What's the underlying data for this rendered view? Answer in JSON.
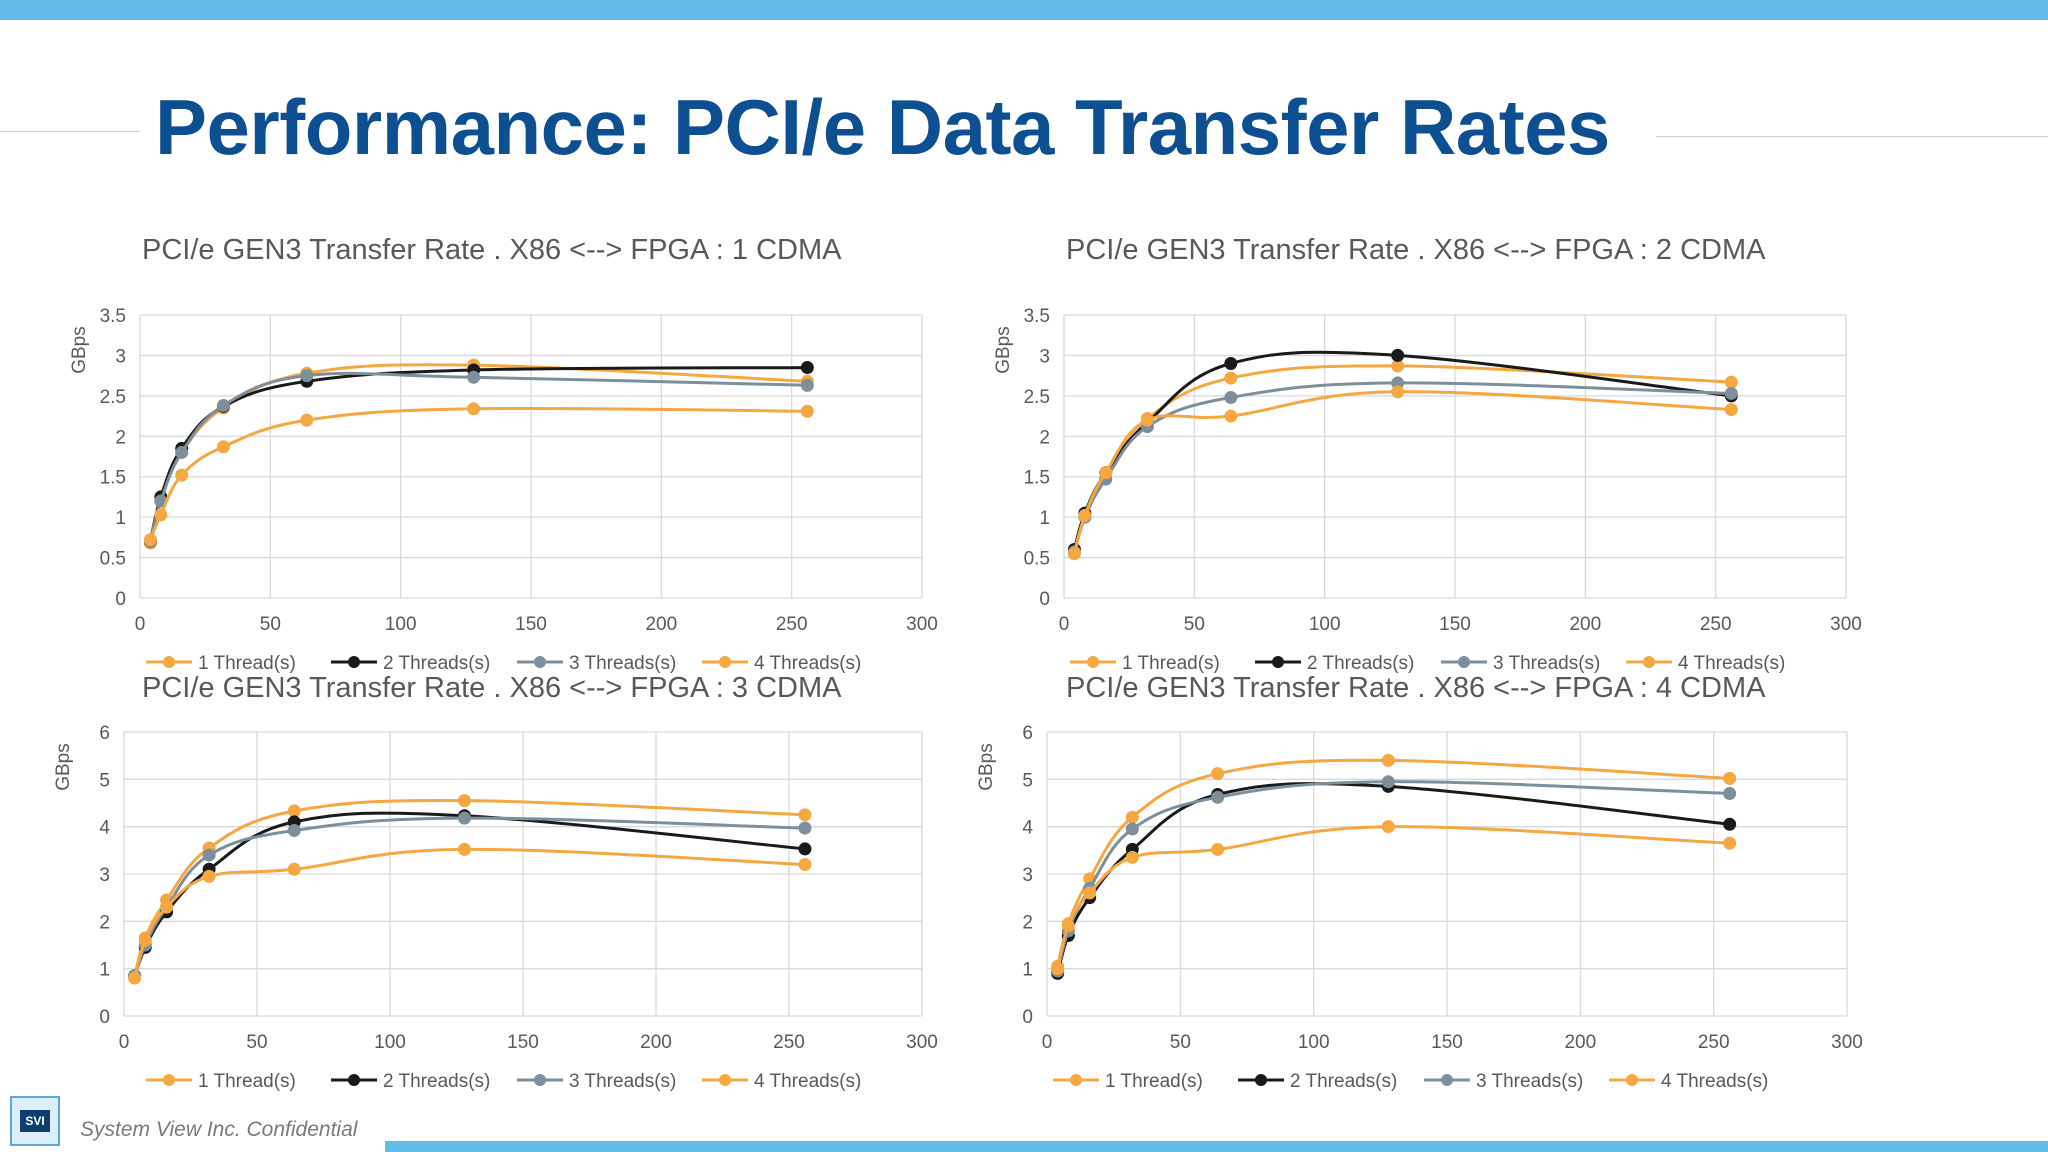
{
  "slide_title": "Performance: PCI/e Data Transfer Rates",
  "footer_text": "System View Inc. Confidential",
  "logo_text": "SVI",
  "colors": {
    "title": "#0d4f91",
    "bar": "#63bde8",
    "thread1": "#f5a742",
    "thread2": "#1a1a1a",
    "thread3": "#7d8f9b",
    "thread4": "#f5a742"
  },
  "chart_data": [
    {
      "type": "line",
      "title": "PCI/e GEN3 Transfer Rate . X86 <--> FPGA : 1 CDMA",
      "ylabel": "GBps",
      "xlim": [
        0,
        300
      ],
      "ylim": [
        0,
        3.5
      ],
      "xticks": [
        "0",
        "50",
        "100",
        "150",
        "200",
        "250",
        "300"
      ],
      "yticks": [
        "0",
        "0.5",
        "1",
        "1.5",
        "2",
        "2.5",
        "3",
        "3.5"
      ],
      "grid": true,
      "legend": "bottom",
      "x": [
        4,
        8,
        16,
        32,
        64,
        128,
        256
      ],
      "series": [
        {
          "name": "1  Thread(s)",
          "color": "#f5a742",
          "values": [
            0.68,
            1.22,
            1.8,
            2.35,
            2.78,
            2.88,
            2.68
          ]
        },
        {
          "name": "2 Threads(s)",
          "color": "#1a1a1a",
          "values": [
            0.7,
            1.25,
            1.85,
            2.37,
            2.68,
            2.82,
            2.85
          ]
        },
        {
          "name": "3 Threads(s)",
          "color": "#7d8f9b",
          "values": [
            0.7,
            1.2,
            1.8,
            2.38,
            2.75,
            2.73,
            2.63
          ]
        },
        {
          "name": "4 Threads(s)",
          "color": "#f5a742",
          "values": [
            0.72,
            1.03,
            1.52,
            1.87,
            2.2,
            2.34,
            2.31
          ]
        }
      ]
    },
    {
      "type": "line",
      "title": "PCI/e GEN3 Transfer Rate . X86 <--> FPGA : 2 CDMA",
      "ylabel": "GBps",
      "xlim": [
        0,
        300
      ],
      "ylim": [
        0,
        3.5
      ],
      "xticks": [
        "0",
        "50",
        "100",
        "150",
        "200",
        "250",
        "300"
      ],
      "yticks": [
        "0",
        "0.5",
        "1",
        "1.5",
        "2",
        "2.5",
        "3",
        "3.5"
      ],
      "grid": true,
      "legend": "bottom",
      "x": [
        4,
        8,
        16,
        32,
        64,
        128,
        256
      ],
      "series": [
        {
          "name": "1  Thread(s)",
          "color": "#f5a742",
          "values": [
            0.55,
            1.0,
            1.55,
            2.22,
            2.72,
            2.87,
            2.67
          ]
        },
        {
          "name": "2 Threads(s)",
          "color": "#1a1a1a",
          "values": [
            0.6,
            1.05,
            1.55,
            2.17,
            2.9,
            3.0,
            2.5
          ]
        },
        {
          "name": "3 Threads(s)",
          "color": "#7d8f9b",
          "values": [
            0.57,
            1.0,
            1.47,
            2.12,
            2.48,
            2.66,
            2.53
          ]
        },
        {
          "name": "4 Threads(s)",
          "color": "#f5a742",
          "values": [
            0.55,
            1.02,
            1.55,
            2.2,
            2.25,
            2.55,
            2.33
          ]
        }
      ]
    },
    {
      "type": "line",
      "title": "PCI/e GEN3 Transfer Rate . X86 <--> FPGA : 3 CDMA",
      "ylabel": "GBps",
      "xlim": [
        0,
        300
      ],
      "ylim": [
        0,
        6
      ],
      "xticks": [
        "0",
        "50",
        "100",
        "150",
        "200",
        "250",
        "300"
      ],
      "yticks": [
        "0",
        "1",
        "2",
        "3",
        "4",
        "5",
        "6"
      ],
      "grid": true,
      "legend": "bottom",
      "x": [
        4,
        8,
        16,
        32,
        64,
        128,
        256
      ],
      "series": [
        {
          "name": "1  Thread(s)",
          "color": "#f5a742",
          "values": [
            0.85,
            1.65,
            2.45,
            3.55,
            4.33,
            4.55,
            4.25
          ]
        },
        {
          "name": "2 Threads(s)",
          "color": "#1a1a1a",
          "values": [
            0.85,
            1.45,
            2.2,
            3.1,
            4.1,
            4.23,
            3.53
          ]
        },
        {
          "name": "3 Threads(s)",
          "color": "#7d8f9b",
          "values": [
            0.85,
            1.5,
            2.3,
            3.4,
            3.92,
            4.18,
            3.97
          ]
        },
        {
          "name": "4 Threads(s)",
          "color": "#f5a742",
          "values": [
            0.8,
            1.6,
            2.3,
            2.95,
            3.1,
            3.52,
            3.2
          ]
        }
      ]
    },
    {
      "type": "line",
      "title": "PCI/e GEN3 Transfer Rate . X86 <--> FPGA : 4 CDMA",
      "ylabel": "GBps",
      "xlim": [
        0,
        300
      ],
      "ylim": [
        0,
        6
      ],
      "xticks": [
        "0",
        "50",
        "100",
        "150",
        "200",
        "250",
        "300"
      ],
      "yticks": [
        "0",
        "1",
        "2",
        "3",
        "4",
        "5",
        "6"
      ],
      "grid": true,
      "legend": "bottom",
      "x": [
        4,
        8,
        16,
        32,
        64,
        128,
        256
      ],
      "series": [
        {
          "name": "1  Thread(s)",
          "color": "#f5a742",
          "values": [
            1.05,
            1.95,
            2.9,
            4.2,
            5.12,
            5.4,
            5.02
          ]
        },
        {
          "name": "2 Threads(s)",
          "color": "#1a1a1a",
          "values": [
            0.9,
            1.7,
            2.5,
            3.52,
            4.68,
            4.85,
            4.05
          ]
        },
        {
          "name": "3 Threads(s)",
          "color": "#7d8f9b",
          "values": [
            0.95,
            1.8,
            2.7,
            3.95,
            4.62,
            4.95,
            4.7
          ]
        },
        {
          "name": "4 Threads(s)",
          "color": "#f5a742",
          "values": [
            1.0,
            1.9,
            2.6,
            3.35,
            3.52,
            4.0,
            3.65
          ]
        }
      ]
    }
  ]
}
